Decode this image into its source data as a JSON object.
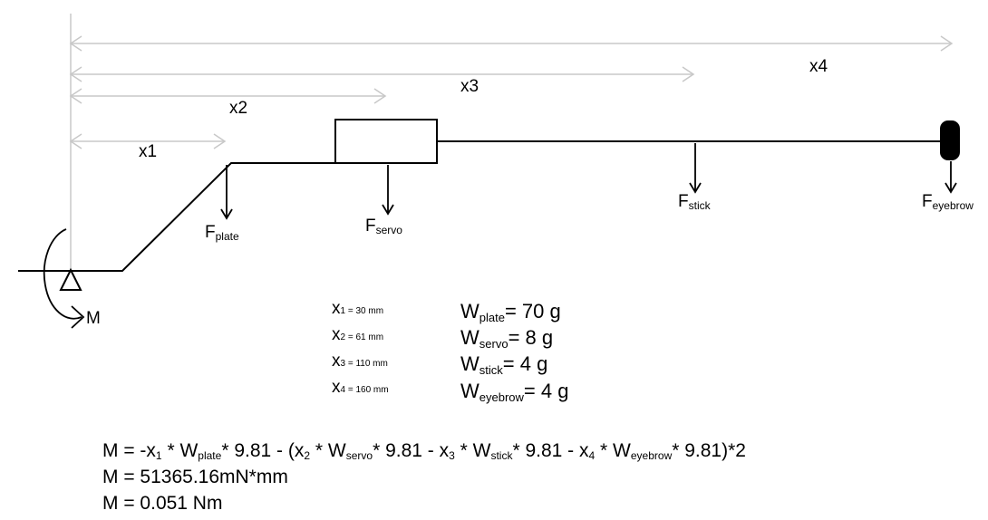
{
  "dimensions": {
    "x1_label": "x1",
    "x2_label": "x2",
    "x3_label": "x3",
    "x4_label": "x4"
  },
  "forces": {
    "plate": {
      "main": "F",
      "sub": "plate"
    },
    "servo": {
      "main": "F",
      "sub": "servo"
    },
    "stick": {
      "main": "F",
      "sub": "stick"
    },
    "eyebrow": {
      "main": "F",
      "sub": "eyebrow"
    }
  },
  "moment_label": "M",
  "distances": [
    {
      "main": "x",
      "sub": "1",
      "value": " = 30 mm"
    },
    {
      "main": "x",
      "sub": "2",
      "value": " = 61 mm"
    },
    {
      "main": "x",
      "sub": "3",
      "value": " = 110 mm"
    },
    {
      "main": "x",
      "sub": "4",
      "value": " = 160 mm"
    }
  ],
  "weights": [
    {
      "main": "W",
      "sub": "plate",
      "value": "= 70 g"
    },
    {
      "main": "W",
      "sub": "servo",
      "value": "= 8 g"
    },
    {
      "main": "W",
      "sub": "stick",
      "value": "= 4 g"
    },
    {
      "main": "W",
      "sub": "eyebrow",
      "value": "= 4 g"
    }
  ],
  "equation": {
    "line1_parts": [
      "M = -x",
      "1",
      " * W",
      "plate",
      "* 9.81 - (x",
      "2",
      " * W",
      "servo",
      "* 9.81 - x",
      "3",
      " * W",
      "stick",
      "* 9.81 - x",
      "4",
      " * W",
      "eyebrow",
      "* 9.81)*2"
    ],
    "line2": "M = 51365.16mN*mm",
    "line3": "M = 0.051 Nm"
  }
}
